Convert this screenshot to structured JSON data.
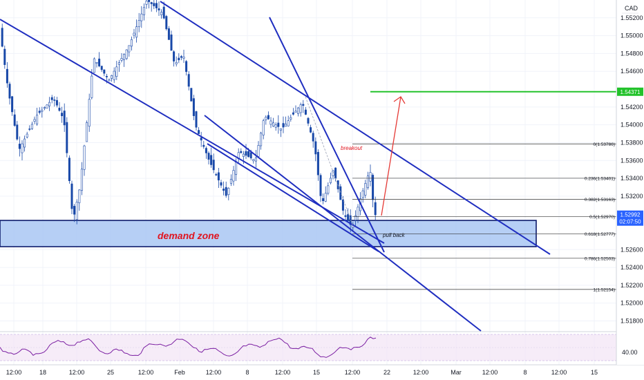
{
  "chart_data": {
    "type": "candlestick",
    "currency": "CAD",
    "ylim": [
      1.5168,
      1.554
    ],
    "y_ticks": [
      1.552,
      1.55,
      1.548,
      1.546,
      1.542,
      1.54,
      1.538,
      1.536,
      1.534,
      1.532,
      1.526,
      1.524,
      1.522,
      1.52,
      1.518
    ],
    "y_tick_labels": [
      "1.55200",
      "1.55000",
      "1.54800",
      "1.54600",
      "1.54200",
      "1.54000",
      "1.53800",
      "1.53600",
      "1.53400",
      "1.53200",
      "1.52600",
      "1.52400",
      "1.52200",
      "1.52000",
      "1.51800"
    ],
    "x_tick_labels": [
      "12:00",
      "18",
      "12:00",
      "25",
      "12:00",
      "Feb",
      "12:00",
      "8",
      "12:00",
      "15",
      "12:00",
      "22",
      "12:00",
      "Mar",
      "12:00",
      "8",
      "12:00",
      "15"
    ],
    "price_badges": {
      "target": "1.54371",
      "current": "1.52992",
      "countdown": "02:07:50"
    },
    "target_level": 1.54371,
    "current_price": 1.52992,
    "fibonacci": [
      {
        "label": "0(1.53786)",
        "price": 1.53786
      },
      {
        "label": "0.236(1.53401)",
        "price": 1.53401
      },
      {
        "label": "0.382(1.53163)",
        "price": 1.53163
      },
      {
        "label": "0.5(1.52970)",
        "price": 1.5297
      },
      {
        "label": "0.618(1.52777)",
        "price": 1.52777
      },
      {
        "label": "0.786(1.52503)",
        "price": 1.52503
      },
      {
        "label": "1(1.52154)",
        "price": 1.52154
      }
    ],
    "annotations": {
      "demand_zone": "demand zone",
      "breakout": "breakout",
      "pull_back": "pull back"
    },
    "rsi": {
      "tick_labels": [
        "40.00"
      ]
    },
    "colors": {
      "candle": "#1848a8",
      "trendline": "#1f2ec0",
      "zone_fill": "#a9c7f3",
      "target": "#22c22a",
      "arrow": "#e53935",
      "badge_current": "#2962ff",
      "rsi_line": "#7b1fa2"
    }
  }
}
